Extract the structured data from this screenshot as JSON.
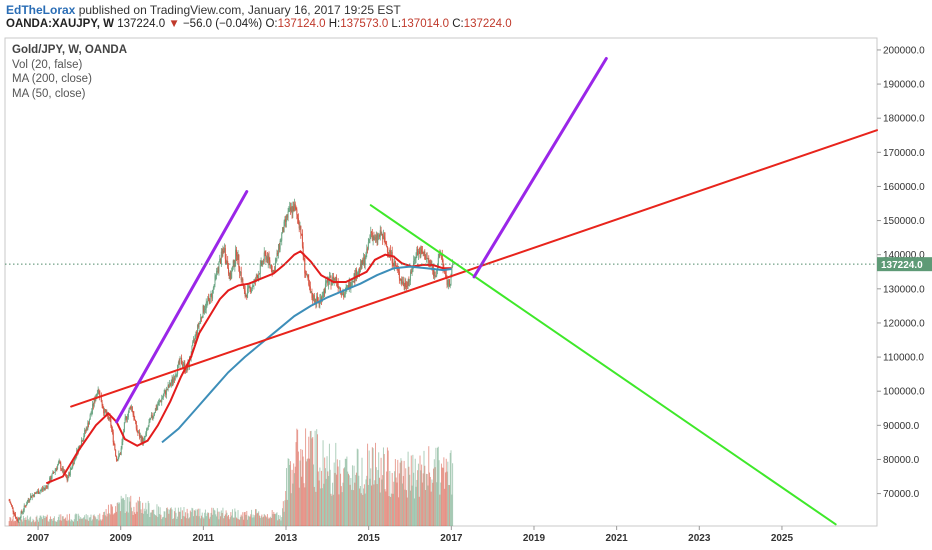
{
  "header": {
    "author": "EdTheLorax",
    "published": "published on TradingView.com, January 16, 2017 19:25 EST"
  },
  "ohlc_bar": {
    "symbol": "OANDA:XAUJPY, W",
    "last": "137224.0",
    "change": "−56.0 (−0.04%)",
    "open_label": "O:",
    "open": "137124.0",
    "high_label": "H:",
    "high": "137573.0",
    "low_label": "L:",
    "low": "137014.0",
    "close_label": "C:",
    "close": "137224.0"
  },
  "legend": {
    "title": "Gold/JPY, W, OANDA",
    "items": [
      "Vol (20, false)",
      "MA (200, close)",
      "MA (50, close)"
    ]
  },
  "price_tag": "137224.0",
  "colors": {
    "bull": "#6ba583",
    "bear": "#d75442",
    "ma_short": "#e31c1c",
    "ma_long": "#3d8eb9",
    "trend_support": "#e8241c",
    "trend_down": "#3fe82a",
    "projection": "#9a26e8",
    "price_line": "#4f8a6a"
  },
  "chart_data": {
    "type": "candlestick",
    "symbol": "OANDA:XAUJPY",
    "interval": "W",
    "x_range": [
      2006.2,
      2027.3
    ],
    "x_ticks": [
      "2007",
      "2009",
      "2011",
      "2013",
      "2015",
      "2017",
      "2019",
      "2021",
      "2023",
      "2025"
    ],
    "y_range": [
      60500,
      203500
    ],
    "y_ticks": [
      "70000.0",
      "80000.0",
      "90000.0",
      "100000.0",
      "110000.0",
      "120000.0",
      "130000.0",
      "140000.0",
      "150000.0",
      "160000.0",
      "170000.0",
      "180000.0",
      "190000.0",
      "200000.0"
    ],
    "last_price": 137224.0,
    "price_path": [
      [
        2006.3,
        68000
      ],
      [
        2006.5,
        62000
      ],
      [
        2006.8,
        69000
      ],
      [
        2007.2,
        72000
      ],
      [
        2007.5,
        79000
      ],
      [
        2007.7,
        74000
      ],
      [
        2007.9,
        81000
      ],
      [
        2008.2,
        90000
      ],
      [
        2008.45,
        101000
      ],
      [
        2008.6,
        94000
      ],
      [
        2008.75,
        91000
      ],
      [
        2008.9,
        80000
      ],
      [
        2009.0,
        82000
      ],
      [
        2009.1,
        91000
      ],
      [
        2009.25,
        96000
      ],
      [
        2009.4,
        88000
      ],
      [
        2009.55,
        85000
      ],
      [
        2009.7,
        91000
      ],
      [
        2009.85,
        95000
      ],
      [
        2010.0,
        98000
      ],
      [
        2010.25,
        103000
      ],
      [
        2010.45,
        109000
      ],
      [
        2010.6,
        106000
      ],
      [
        2010.8,
        116000
      ],
      [
        2011.0,
        124000
      ],
      [
        2011.2,
        128000
      ],
      [
        2011.35,
        136000
      ],
      [
        2011.5,
        142000
      ],
      [
        2011.65,
        133000
      ],
      [
        2011.8,
        141000
      ],
      [
        2012.0,
        128000
      ],
      [
        2012.25,
        132000
      ],
      [
        2012.5,
        140000
      ],
      [
        2012.7,
        135000
      ],
      [
        2012.9,
        146000
      ],
      [
        2013.05,
        152000
      ],
      [
        2013.2,
        154000
      ],
      [
        2013.35,
        148000
      ],
      [
        2013.45,
        136000
      ],
      [
        2013.6,
        128000
      ],
      [
        2013.8,
        126000
      ],
      [
        2014.0,
        132000
      ],
      [
        2014.2,
        133000
      ],
      [
        2014.4,
        128000
      ],
      [
        2014.6,
        133000
      ],
      [
        2014.8,
        136000
      ],
      [
        2014.95,
        140000
      ],
      [
        2015.05,
        147000
      ],
      [
        2015.15,
        144000
      ],
      [
        2015.3,
        146000
      ],
      [
        2015.5,
        141000
      ],
      [
        2015.7,
        135000
      ],
      [
        2015.85,
        131000
      ],
      [
        2016.0,
        133000
      ],
      [
        2016.15,
        141000
      ],
      [
        2016.35,
        140000
      ],
      [
        2016.5,
        137000
      ],
      [
        2016.6,
        134000
      ],
      [
        2016.75,
        141000
      ],
      [
        2016.85,
        133000
      ],
      [
        2016.95,
        131000
      ],
      [
        2017.04,
        137224
      ]
    ],
    "series": [
      {
        "name": "MA (50, close)",
        "points": [
          [
            2007.2,
            73000
          ],
          [
            2007.6,
            75000
          ],
          [
            2008.0,
            83000
          ],
          [
            2008.4,
            90000
          ],
          [
            2008.7,
            93500
          ],
          [
            2008.9,
            91000
          ],
          [
            2009.1,
            86000
          ],
          [
            2009.4,
            84000
          ],
          [
            2009.65,
            85500
          ],
          [
            2009.9,
            90000
          ],
          [
            2010.2,
            97000
          ],
          [
            2010.45,
            104000
          ],
          [
            2010.7,
            110000
          ],
          [
            2010.9,
            117000
          ],
          [
            2011.15,
            122000
          ],
          [
            2011.4,
            127000
          ],
          [
            2011.6,
            129500
          ],
          [
            2011.85,
            131000
          ],
          [
            2012.1,
            131500
          ],
          [
            2012.4,
            133000
          ],
          [
            2012.7,
            134500
          ],
          [
            2012.95,
            137000
          ],
          [
            2013.2,
            140000
          ],
          [
            2013.35,
            141000
          ],
          [
            2013.6,
            138000
          ],
          [
            2013.85,
            134000
          ],
          [
            2014.15,
            132000
          ],
          [
            2014.45,
            132000
          ],
          [
            2014.7,
            133500
          ],
          [
            2014.95,
            135000
          ],
          [
            2015.15,
            138500
          ],
          [
            2015.4,
            140000
          ],
          [
            2015.6,
            139500
          ],
          [
            2015.8,
            137500
          ],
          [
            2016.05,
            136500
          ],
          [
            2016.3,
            137000
          ],
          [
            2016.55,
            137000
          ],
          [
            2016.8,
            136000
          ],
          [
            2017.0,
            136000
          ]
        ]
      },
      {
        "name": "MA (200, close)",
        "points": [
          [
            2010.0,
            85000
          ],
          [
            2010.4,
            89000
          ],
          [
            2010.8,
            94500
          ],
          [
            2011.2,
            100000
          ],
          [
            2011.6,
            105500
          ],
          [
            2012.0,
            110000
          ],
          [
            2012.4,
            114000
          ],
          [
            2012.8,
            118000
          ],
          [
            2013.2,
            122000
          ],
          [
            2013.6,
            125000
          ],
          [
            2014.0,
            127500
          ],
          [
            2014.4,
            129500
          ],
          [
            2014.8,
            131500
          ],
          [
            2015.2,
            134000
          ],
          [
            2015.6,
            136000
          ],
          [
            2016.0,
            136500
          ],
          [
            2016.4,
            136000
          ],
          [
            2016.8,
            135500
          ],
          [
            2017.0,
            135800
          ]
        ]
      }
    ],
    "volume_path": [
      [
        2006.3,
        0.05
      ],
      [
        2008.5,
        0.07
      ],
      [
        2009.0,
        0.18
      ],
      [
        2009.5,
        0.15
      ],
      [
        2010.0,
        0.1
      ],
      [
        2011.0,
        0.1
      ],
      [
        2012.0,
        0.09
      ],
      [
        2012.9,
        0.08
      ],
      [
        2013.1,
        0.48
      ],
      [
        2013.5,
        0.55
      ],
      [
        2014.0,
        0.45
      ],
      [
        2014.5,
        0.4
      ],
      [
        2015.0,
        0.45
      ],
      [
        2015.5,
        0.4
      ],
      [
        2016.0,
        0.38
      ],
      [
        2016.5,
        0.42
      ],
      [
        2017.04,
        0.4
      ]
    ],
    "trendlines": [
      {
        "name": "support",
        "from": [
          2007.8,
          95500
        ],
        "to": [
          2027.3,
          176500
        ]
      },
      {
        "name": "downtrend",
        "from": [
          2015.05,
          154500
        ],
        "to": [
          2026.3,
          61000
        ]
      },
      {
        "name": "projection-2008",
        "from": [
          2008.9,
          91000
        ],
        "to": [
          2012.05,
          158500
        ]
      },
      {
        "name": "projection-2017",
        "from": [
          2017.55,
          133500
        ],
        "to": [
          2020.75,
          197500
        ]
      }
    ]
  }
}
